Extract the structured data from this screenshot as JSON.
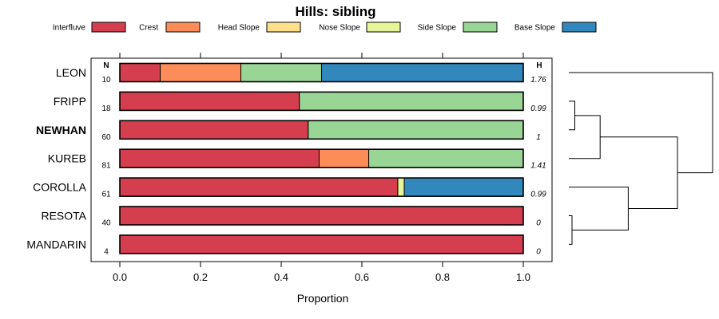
{
  "chart_data": {
    "type": "bar",
    "orientation": "horizontal",
    "stacked": true,
    "title": "Hills: sibling",
    "xlabel": "Proportion",
    "xlim": [
      0,
      1
    ],
    "xticks": [
      "0.0",
      "0.2",
      "0.4",
      "0.6",
      "0.8",
      "1.0"
    ],
    "n_header": "N",
    "h_header": "H",
    "legend": [
      {
        "name": "Interfluve",
        "color": "#d53e4f"
      },
      {
        "name": "Crest",
        "color": "#fc8d59"
      },
      {
        "name": "Head Slope",
        "color": "#fee08b"
      },
      {
        "name": "Nose Slope",
        "color": "#e6f598"
      },
      {
        "name": "Side Slope",
        "color": "#99d594"
      },
      {
        "name": "Base Slope",
        "color": "#3288bd"
      }
    ],
    "rows": [
      {
        "label": "LEON",
        "n": "10",
        "h": "1.76",
        "bold": false,
        "values": [
          0.1,
          0.2,
          0,
          0,
          0.2,
          0.5
        ]
      },
      {
        "label": "FRIPP",
        "n": "18",
        "h": "0.99",
        "bold": false,
        "values": [
          0.445,
          0,
          0,
          0,
          0.555,
          0
        ]
      },
      {
        "label": "NEWHAN",
        "n": "60",
        "h": "1",
        "bold": true,
        "values": [
          0.467,
          0,
          0,
          0,
          0.533,
          0
        ]
      },
      {
        "label": "KUREB",
        "n": "81",
        "h": "1.41",
        "bold": false,
        "values": [
          0.494,
          0.123,
          0,
          0,
          0.383,
          0
        ]
      },
      {
        "label": "COROLLA",
        "n": "61",
        "h": "0.99",
        "bold": false,
        "values": [
          0.689,
          0,
          0,
          0.016,
          0,
          0.295
        ]
      },
      {
        "label": "RESOTA",
        "n": "40",
        "h": "0",
        "bold": false,
        "values": [
          1,
          0,
          0,
          0,
          0,
          0
        ]
      },
      {
        "label": "MANDARIN",
        "n": "4",
        "h": "0",
        "bold": false,
        "values": [
          1,
          0,
          0,
          0,
          0,
          0
        ]
      }
    ],
    "dendrogram": {
      "type": "hierarchical-clustering",
      "merges": [
        {
          "id": "a",
          "left": "FRIPP",
          "right": "NEWHAN",
          "height": 0.02
        },
        {
          "id": "b",
          "left": "a",
          "right": "KUREB",
          "height": 0.2
        },
        {
          "id": "c",
          "left": "RESOTA",
          "right": "MANDARIN",
          "height": 0.0
        },
        {
          "id": "d",
          "left": "COROLLA",
          "right": "c",
          "height": 0.4
        },
        {
          "id": "e",
          "left": "b",
          "right": "d",
          "height": 0.75
        },
        {
          "id": "f",
          "left": "LEON",
          "right": "e",
          "height": 1.0
        }
      ]
    }
  }
}
